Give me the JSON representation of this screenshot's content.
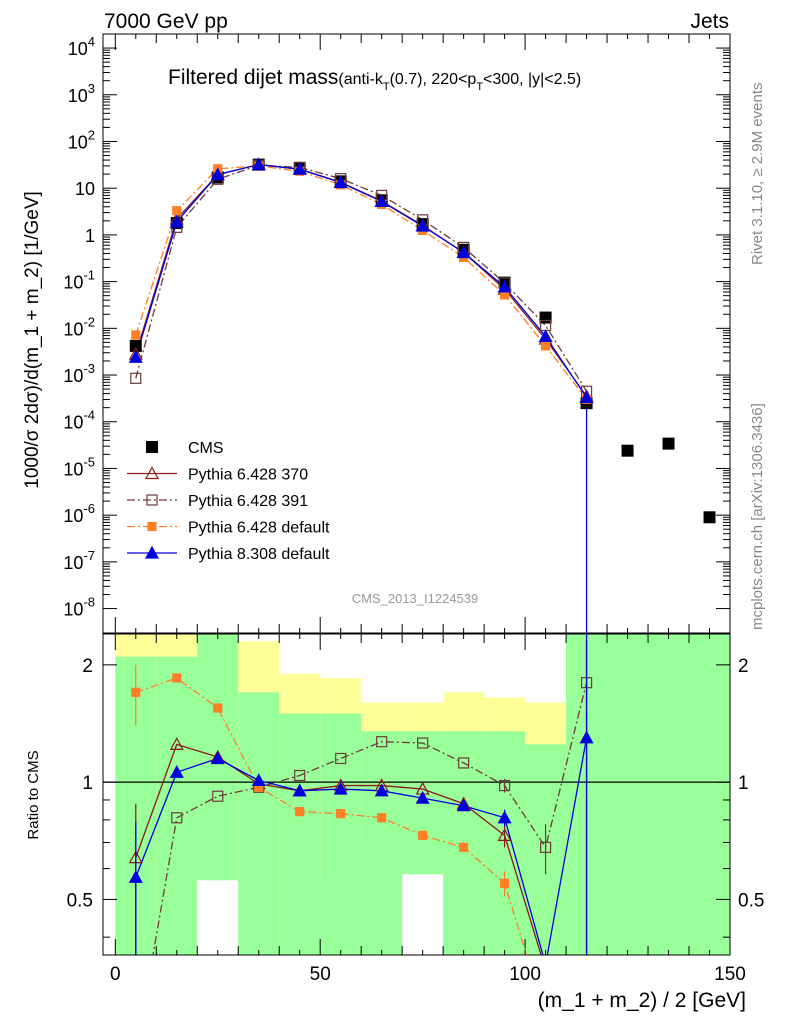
{
  "header": {
    "left": "7000 GeV pp",
    "right": "Jets"
  },
  "side_labels": {
    "rivet": "Rivet 3.1.10, ≥ 2.9M events",
    "mcplots": "mcplots.cern.ch [arXiv:1306.3436]"
  },
  "watermark": "CMS_2013_I1224539",
  "chart_data": [
    {
      "type": "line",
      "title": "Filtered dijet mass",
      "subtitle": "(anti-kT(0.7), 220<pT<300, |y|<2.5)",
      "ylabel": "1000/σ 2dσ)/d(m_1 + m_2) [1/GeV]",
      "xlabel": "",
      "xlim": [
        -3,
        150
      ],
      "ylim": [
        3e-09,
        20000.0
      ],
      "yscale": "log",
      "x_ticks": [
        0,
        50,
        100,
        150
      ],
      "y_tick_labels": [
        "10-8",
        "10-7",
        "10-6",
        "10-5",
        "10-4",
        "10-3",
        "10-2",
        "10-1",
        "1",
        "10",
        "102",
        "103",
        "104"
      ],
      "legend_position": "lower-left",
      "series": [
        {
          "name": "CMS",
          "color": "#000000",
          "style": "marker-square",
          "x": [
            5,
            15,
            25,
            35,
            45,
            55,
            65,
            75,
            85,
            95,
            105,
            115,
            125,
            135,
            145
          ],
          "y": [
            0.0042,
            1.8,
            17,
            32,
            27,
            14,
            5.5,
            1.7,
            0.48,
            0.095,
            0.017,
            0.00025,
            2.4e-05,
            3.4e-05,
            9e-07
          ]
        },
        {
          "name": "Pythia 6.428 370",
          "color": "#8b1a1a",
          "style": "solid-open-triangle",
          "x": [
            5,
            15,
            25,
            35,
            45,
            55,
            65,
            75,
            85,
            95,
            105,
            115
          ],
          "y": [
            0.0028,
            2.2,
            19.5,
            32,
            25.5,
            13.5,
            5.3,
            1.6,
            0.42,
            0.069,
            0.0059,
            0.00035
          ]
        },
        {
          "name": "Pythia 6.428 391",
          "color": "#6e3a3a",
          "style": "dashdot-open-square",
          "x": [
            5,
            15,
            25,
            35,
            45,
            55,
            65,
            75,
            85,
            95,
            105,
            115
          ],
          "y": [
            0.00085,
            1.45,
            15.5,
            31,
            28,
            16,
            7,
            2.1,
            0.54,
            0.093,
            0.0115,
            0.00045
          ]
        },
        {
          "name": "Pythia 6.428 default",
          "color": "#ff7f27",
          "style": "dashdot-filled-square",
          "x": [
            5,
            15,
            25,
            35,
            45,
            55,
            65,
            75,
            85,
            95,
            105,
            115
          ],
          "y": [
            0.0072,
            3.3,
            26,
            30,
            23,
            11.8,
            4.5,
            1.25,
            0.33,
            0.052,
            0.0042,
            0.0003
          ]
        },
        {
          "name": "Pythia 8.308 default",
          "color": "#0000dd",
          "style": "solid-filled-triangle",
          "x": [
            5,
            15,
            25,
            35,
            45,
            55,
            65,
            75,
            85,
            95,
            105,
            115
          ],
          "y": [
            0.0024,
            1.9,
            19.5,
            32,
            25.5,
            13.2,
            5.2,
            1.55,
            0.42,
            0.077,
            0.0067,
            0.00033
          ]
        }
      ]
    },
    {
      "type": "line",
      "ylabel": "Ratio to CMS",
      "xlabel": "(m_1 + m_2) / 2 [GeV]",
      "xlim": [
        -3,
        150
      ],
      "ylim": [
        0.36,
        2.4
      ],
      "yscale": "log",
      "y_ticks": [
        0.5,
        1,
        2
      ],
      "x_ticks": [
        0,
        50,
        100,
        150
      ],
      "reference_line": 1,
      "bands": {
        "x_edges": [
          0,
          10,
          20,
          30,
          40,
          50,
          60,
          70,
          80,
          90,
          100,
          110,
          120,
          130,
          140,
          150
        ],
        "green_lo": [
          0.3,
          0.3,
          0.3,
          0.3,
          0.3,
          0.3,
          0.3,
          0.3,
          0.3,
          0.3,
          0.3,
          0.3,
          0.3,
          0.3,
          0.3
        ],
        "green_hi": [
          2.1,
          2.1,
          2.4,
          1.7,
          1.5,
          1.5,
          1.35,
          1.35,
          1.35,
          1.35,
          1.25,
          2.4,
          2.4,
          2.4,
          2.4
        ],
        "yellow_lo": [
          0.3,
          0.3,
          0.3,
          0.56,
          0.58,
          0.58,
          0.7,
          0.7,
          0.72,
          0.72,
          0.3,
          0.3,
          0.3,
          0.3,
          0.3
        ],
        "yellow_hi": [
          2.4,
          2.4,
          2.4,
          2.3,
          1.9,
          1.85,
          1.6,
          1.6,
          1.7,
          1.65,
          1.6,
          2.4,
          2.4,
          2.1,
          2.4
        ],
        "white_lo": [
          null,
          null,
          0.3,
          null,
          null,
          null,
          null,
          0.3,
          null,
          null,
          null,
          null,
          null,
          null,
          null
        ],
        "white_hi": [
          null,
          null,
          0.56,
          null,
          null,
          null,
          null,
          0.58,
          null,
          null,
          null,
          null,
          null,
          null,
          null
        ]
      },
      "series": [
        {
          "name": "Pythia 6.428 370",
          "color": "#8b1a1a",
          "style": "solid-open-triangle",
          "x": [
            5,
            15,
            25,
            35,
            45,
            55,
            65,
            75,
            85,
            95,
            105
          ],
          "y": [
            0.64,
            1.25,
            1.16,
            0.99,
            0.95,
            0.98,
            0.98,
            0.96,
            0.88,
            0.73,
            0.33
          ],
          "yerr": [
            0.24,
            0.0,
            0.0,
            0.0,
            0.0,
            0.0,
            0.0,
            0.0,
            0.0,
            0.05,
            0.0
          ]
        },
        {
          "name": "Pythia 6.428 391",
          "color": "#6e3a3a",
          "style": "dashdot-open-square",
          "x": [
            5,
            15,
            25,
            35,
            45,
            55,
            65,
            75,
            85,
            95,
            105,
            115
          ],
          "y": [
            0.2,
            0.81,
            0.92,
            0.97,
            1.04,
            1.15,
            1.27,
            1.26,
            1.12,
            0.98,
            0.68,
            1.8
          ],
          "yerr": [
            0.0,
            0.0,
            0.0,
            0.0,
            0.0,
            0.0,
            0.0,
            0.0,
            0.0,
            0.04,
            0.1,
            0.0
          ]
        },
        {
          "name": "Pythia 6.428 default",
          "color": "#ff7f27",
          "style": "dashdot-filled-square",
          "x": [
            5,
            15,
            25,
            35,
            45,
            55,
            65,
            75,
            85,
            95,
            105
          ],
          "y": [
            1.7,
            1.85,
            1.55,
            0.97,
            0.84,
            0.83,
            0.81,
            0.73,
            0.68,
            0.55,
            0.25
          ],
          "yerr": [
            0.3,
            0.0,
            0.0,
            0.0,
            0.0,
            0.0,
            0.0,
            0.0,
            0.02,
            0.04,
            0.0
          ]
        },
        {
          "name": "Pythia 8.308 default",
          "color": "#0000dd",
          "style": "solid-filled-triangle",
          "x": [
            5,
            15,
            25,
            35,
            45,
            55,
            65,
            75,
            85,
            95,
            105,
            115
          ],
          "y": [
            0.57,
            1.06,
            1.15,
            1.01,
            0.95,
            0.96,
            0.95,
            0.91,
            0.87,
            0.81,
            0.34,
            1.3
          ],
          "yerr": [
            0.22,
            0.0,
            0.0,
            0.0,
            0.0,
            0.0,
            0.0,
            0.0,
            0.0,
            0.04,
            0.0,
            1.0
          ]
        }
      ]
    }
  ]
}
